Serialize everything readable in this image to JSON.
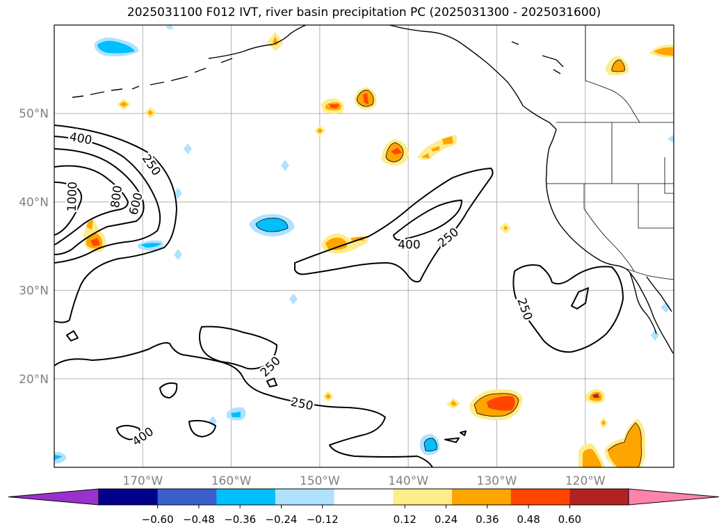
{
  "title": "2025031100 F012 IVT, river basin precipitation PC (2025031300 - 2025031600)",
  "map": {
    "lon_range": [
      -180,
      -110
    ],
    "lat_range": [
      10,
      60
    ],
    "lon_ticks": [
      {
        "value": -170,
        "label": "170°W"
      },
      {
        "value": -160,
        "label": "160°W"
      },
      {
        "value": -150,
        "label": "150°W"
      },
      {
        "value": -140,
        "label": "140°W"
      },
      {
        "value": -130,
        "label": "130°W"
      },
      {
        "value": -120,
        "label": "120°W"
      }
    ],
    "lat_ticks": [
      {
        "value": 20,
        "label": "20°N"
      },
      {
        "value": 30,
        "label": "30°N"
      },
      {
        "value": 40,
        "label": "40°N"
      },
      {
        "value": 50,
        "label": "50°N"
      }
    ],
    "gridlines": true,
    "tick_color": "#808080"
  },
  "contour_labels": [
    {
      "text": "400",
      "lon": -177,
      "lat": 47.2,
      "rot": 10
    },
    {
      "text": "250",
      "lon": -169,
      "lat": 44.2,
      "rot": 55
    },
    {
      "text": "1000",
      "lon": -178,
      "lat": 40.6,
      "rot": -88
    },
    {
      "text": "800",
      "lon": -173,
      "lat": 40.6,
      "rot": -82
    },
    {
      "text": "600",
      "lon": -170.8,
      "lat": 39.8,
      "rot": -75
    },
    {
      "text": "400",
      "lon": -139.9,
      "lat": 35.2,
      "rot": 0
    },
    {
      "text": "250",
      "lon": -135.5,
      "lat": 36.0,
      "rot": -40
    },
    {
      "text": "250",
      "lon": -126.8,
      "lat": 27.9,
      "rot": 70
    },
    {
      "text": "250",
      "lon": -155.6,
      "lat": 21.4,
      "rot": -45
    },
    {
      "text": "250",
      "lon": -152,
      "lat": 17.2,
      "rot": 12
    },
    {
      "text": "400",
      "lon": -170,
      "lat": 13.5,
      "rot": -35
    }
  ],
  "colorbar": {
    "colors": [
      "#9932cc",
      "#00008b",
      "#3a5fcd",
      "#00bfff",
      "#b0e2ff",
      "#ffffff",
      "#ffec8b",
      "#ffa500",
      "#ff4500",
      "#b22222",
      "#ff82ab"
    ],
    "ticks": [
      {
        "value": -0.6,
        "label": "−0.60"
      },
      {
        "value": -0.48,
        "label": "−0.48"
      },
      {
        "value": -0.36,
        "label": "−0.36"
      },
      {
        "value": -0.24,
        "label": "−0.24"
      },
      {
        "value": -0.12,
        "label": "−0.12"
      },
      {
        "value": 0.12,
        "label": "0.12"
      },
      {
        "value": 0.24,
        "label": "0.24"
      },
      {
        "value": 0.36,
        "label": "0.36"
      },
      {
        "value": 0.48,
        "label": "0.48"
      },
      {
        "value": 0.6,
        "label": "0.60"
      }
    ],
    "extend": "both"
  }
}
